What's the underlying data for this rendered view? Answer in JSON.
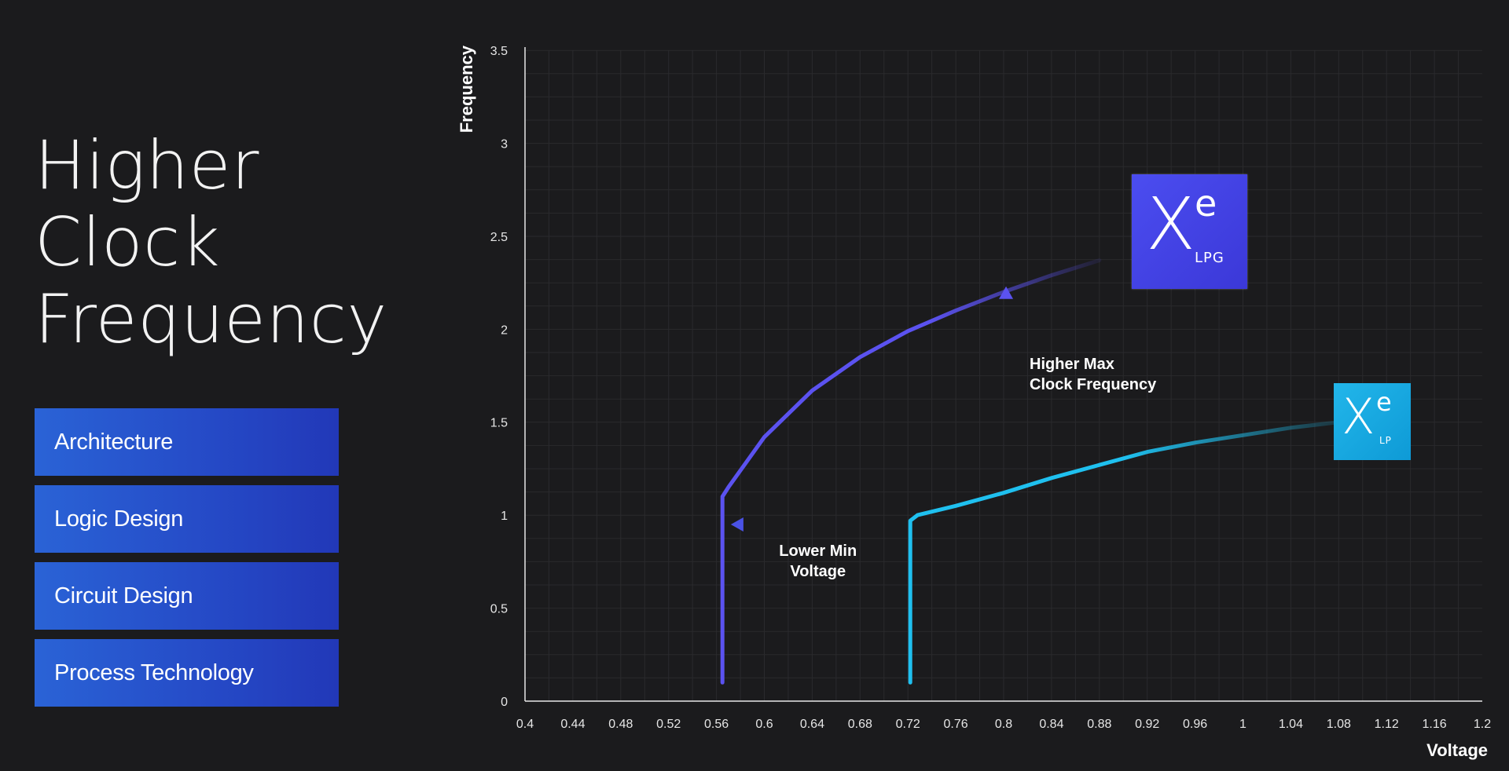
{
  "title_lines": [
    "Higher",
    "Clock",
    "Frequency"
  ],
  "menu_items": [
    "Architecture",
    "Logic Design",
    "Circuit Design",
    "Process Technology"
  ],
  "chart_data": {
    "type": "line",
    "xlabel": "Voltage",
    "ylabel": "Frequency",
    "xlim": [
      0.4,
      1.2
    ],
    "ylim": [
      0,
      3.5
    ],
    "x_ticks": [
      "0.4",
      "0.44",
      "0.48",
      "0.52",
      "0.56",
      "0.6",
      "0.64",
      "0.68",
      "0.72",
      "0.76",
      "0.8",
      "0.84",
      "0.88",
      "0.92",
      "0.96",
      "1",
      "1.04",
      "1.08",
      "1.12",
      "1.16",
      "1.2"
    ],
    "y_ticks": [
      "0",
      "0.5",
      "1",
      "1.5",
      "2",
      "2.5",
      "3",
      "3.5"
    ],
    "grid": true,
    "series": [
      {
        "color": "#5b52f0",
        "points": [
          [
            0.565,
            0.1
          ],
          [
            0.565,
            1.0
          ],
          [
            0.565,
            1.1
          ],
          [
            0.57,
            1.15
          ],
          [
            0.6,
            1.42
          ],
          [
            0.64,
            1.67
          ],
          [
            0.68,
            1.85
          ],
          [
            0.72,
            1.99
          ],
          [
            0.76,
            2.1
          ],
          [
            0.8,
            2.2
          ],
          [
            0.84,
            2.29
          ],
          [
            0.88,
            2.37
          ]
        ]
      },
      {
        "color": "#1fc0ef",
        "points": [
          [
            0.722,
            0.1
          ],
          [
            0.722,
            0.5
          ],
          [
            0.722,
            0.97
          ],
          [
            0.728,
            1.0
          ],
          [
            0.76,
            1.05
          ],
          [
            0.8,
            1.12
          ],
          [
            0.84,
            1.2
          ],
          [
            0.88,
            1.27
          ],
          [
            0.92,
            1.34
          ],
          [
            0.96,
            1.39
          ],
          [
            1.0,
            1.43
          ],
          [
            1.04,
            1.47
          ],
          [
            1.08,
            1.5
          ]
        ]
      }
    ],
    "arrows": [
      {
        "label_lines": [
          "Higher Max",
          "Clock Frequency"
        ],
        "color": "#5b52f0",
        "from": [
          0.802,
          1.3
        ],
        "to": [
          0.802,
          2.23
        ]
      },
      {
        "label_lines": [
          "Lower Min",
          "Voltage"
        ],
        "color": "#4a52e6",
        "from": [
          0.715,
          0.95
        ],
        "to": [
          0.572,
          0.95
        ]
      }
    ],
    "badges": [
      {
        "x": "X",
        "e": "e",
        "sub": "LPG"
      },
      {
        "x": "X",
        "e": "e",
        "sub": "LP"
      }
    ]
  }
}
